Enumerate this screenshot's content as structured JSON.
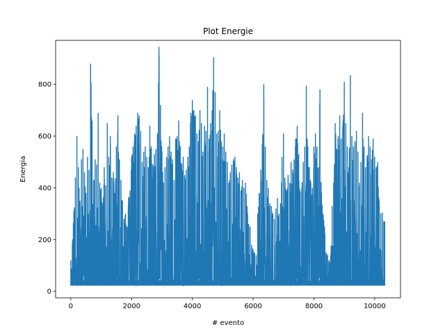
{
  "chart_data": {
    "type": "line",
    "title": "Plot Energie",
    "xlabel": "# evento",
    "ylabel": "Energia",
    "xlim": [
      -500,
      10850
    ],
    "ylim": [
      -25,
      970
    ],
    "xticks": [
      0,
      2000,
      4000,
      6000,
      8000,
      10000
    ],
    "yticks": [
      0,
      200,
      400,
      600,
      800
    ],
    "grid": false,
    "series": [
      {
        "color": "#1f77b4",
        "x_range": [
          0,
          10330
        ],
        "baseline": 22,
        "envelope": [
          [
            0,
            120
          ],
          [
            50,
            185
          ],
          [
            100,
            310
          ],
          [
            150,
            440
          ],
          [
            200,
            600
          ],
          [
            250,
            480
          ],
          [
            300,
            350
          ],
          [
            350,
            510
          ],
          [
            400,
            550
          ],
          [
            450,
            460
          ],
          [
            500,
            380
          ],
          [
            550,
            520
          ],
          [
            600,
            470
          ],
          [
            650,
            880
          ],
          [
            700,
            660
          ],
          [
            750,
            430
          ],
          [
            800,
            510
          ],
          [
            850,
            490
          ],
          [
            900,
            690
          ],
          [
            950,
            420
          ],
          [
            1000,
            400
          ],
          [
            1050,
            330
          ],
          [
            1100,
            480
          ],
          [
            1150,
            410
          ],
          [
            1200,
            650
          ],
          [
            1250,
            520
          ],
          [
            1300,
            600
          ],
          [
            1350,
            440
          ],
          [
            1400,
            460
          ],
          [
            1450,
            380
          ],
          [
            1500,
            560
          ],
          [
            1550,
            680
          ],
          [
            1600,
            510
          ],
          [
            1650,
            430
          ],
          [
            1700,
            350
          ],
          [
            1750,
            280
          ],
          [
            1800,
            300
          ],
          [
            1850,
            250
          ],
          [
            1900,
            360
          ],
          [
            1950,
            390
          ],
          [
            2000,
            520
          ],
          [
            2050,
            560
          ],
          [
            2100,
            610
          ],
          [
            2150,
            640
          ],
          [
            2200,
            690
          ],
          [
            2250,
            680
          ],
          [
            2300,
            620
          ],
          [
            2350,
            500
          ],
          [
            2400,
            540
          ],
          [
            2450,
            560
          ],
          [
            2500,
            520
          ],
          [
            2550,
            480
          ],
          [
            2600,
            640
          ],
          [
            2650,
            560
          ],
          [
            2700,
            490
          ],
          [
            2750,
            530
          ],
          [
            2800,
            550
          ],
          [
            2850,
            610
          ],
          [
            2900,
            945
          ],
          [
            2950,
            720
          ],
          [
            3000,
            540
          ],
          [
            3050,
            420
          ],
          [
            3100,
            480
          ],
          [
            3150,
            520
          ],
          [
            3200,
            560
          ],
          [
            3250,
            600
          ],
          [
            3300,
            540
          ],
          [
            3350,
            510
          ],
          [
            3400,
            430
          ],
          [
            3450,
            590
          ],
          [
            3500,
            600
          ],
          [
            3550,
            660
          ],
          [
            3600,
            560
          ],
          [
            3650,
            490
          ],
          [
            3700,
            520
          ],
          [
            3750,
            450
          ],
          [
            3800,
            470
          ],
          [
            3850,
            520
          ],
          [
            3900,
            560
          ],
          [
            3950,
            690
          ],
          [
            4000,
            740
          ],
          [
            4050,
            700
          ],
          [
            4100,
            680
          ],
          [
            4150,
            610
          ],
          [
            4200,
            580
          ],
          [
            4250,
            700
          ],
          [
            4300,
            650
          ],
          [
            4350,
            540
          ],
          [
            4400,
            640
          ],
          [
            4450,
            620
          ],
          [
            4500,
            790
          ],
          [
            4550,
            590
          ],
          [
            4600,
            650
          ],
          [
            4650,
            700
          ],
          [
            4700,
            905
          ],
          [
            4750,
            770
          ],
          [
            4800,
            610
          ],
          [
            4850,
            620
          ],
          [
            4900,
            700
          ],
          [
            4950,
            580
          ],
          [
            5000,
            560
          ],
          [
            5050,
            610
          ],
          [
            5100,
            540
          ],
          [
            5150,
            500
          ],
          [
            5200,
            420
          ],
          [
            5250,
            460
          ],
          [
            5300,
            490
          ],
          [
            5350,
            510
          ],
          [
            5400,
            520
          ],
          [
            5450,
            480
          ],
          [
            5500,
            440
          ],
          [
            5550,
            460
          ],
          [
            5600,
            390
          ],
          [
            5650,
            430
          ],
          [
            5700,
            400
          ],
          [
            5750,
            420
          ],
          [
            5800,
            330
          ],
          [
            5850,
            260
          ],
          [
            5900,
            250
          ],
          [
            5950,
            180
          ],
          [
            6000,
            160
          ],
          [
            6050,
            150
          ],
          [
            6100,
            140
          ],
          [
            6150,
            300
          ],
          [
            6200,
            380
          ],
          [
            6250,
            470
          ],
          [
            6300,
            570
          ],
          [
            6350,
            800
          ],
          [
            6400,
            560
          ],
          [
            6450,
            430
          ],
          [
            6500,
            400
          ],
          [
            6550,
            340
          ],
          [
            6600,
            330
          ],
          [
            6650,
            300
          ],
          [
            6700,
            280
          ],
          [
            6750,
            320
          ],
          [
            6800,
            360
          ],
          [
            6850,
            300
          ],
          [
            6900,
            340
          ],
          [
            6950,
            520
          ],
          [
            7000,
            610
          ],
          [
            7050,
            420
          ],
          [
            7100,
            390
          ],
          [
            7150,
            450
          ],
          [
            7200,
            420
          ],
          [
            7250,
            500
          ],
          [
            7300,
            470
          ],
          [
            7350,
            510
          ],
          [
            7400,
            590
          ],
          [
            7450,
            640
          ],
          [
            7500,
            530
          ],
          [
            7550,
            380
          ],
          [
            7600,
            400
          ],
          [
            7650,
            500
          ],
          [
            7700,
            560
          ],
          [
            7750,
            795
          ],
          [
            7800,
            560
          ],
          [
            7850,
            480
          ],
          [
            7900,
            420
          ],
          [
            7950,
            400
          ],
          [
            8000,
            560
          ],
          [
            8050,
            610
          ],
          [
            8100,
            560
          ],
          [
            8150,
            480
          ],
          [
            8200,
            780
          ],
          [
            8250,
            380
          ],
          [
            8300,
            300
          ],
          [
            8350,
            250
          ],
          [
            8400,
            150
          ],
          [
            8450,
            140
          ],
          [
            8500,
            120
          ],
          [
            8550,
            140
          ],
          [
            8600,
            330
          ],
          [
            8650,
            420
          ],
          [
            8700,
            650
          ],
          [
            8750,
            550
          ],
          [
            8800,
            600
          ],
          [
            8850,
            680
          ],
          [
            8900,
            590
          ],
          [
            8950,
            640
          ],
          [
            9000,
            810
          ],
          [
            9050,
            650
          ],
          [
            9100,
            560
          ],
          [
            9150,
            480
          ],
          [
            9200,
            835
          ],
          [
            9250,
            600
          ],
          [
            9300,
            560
          ],
          [
            9350,
            580
          ],
          [
            9400,
            620
          ],
          [
            9450,
            540
          ],
          [
            9500,
            420
          ],
          [
            9550,
            500
          ],
          [
            9600,
            690
          ],
          [
            9650,
            560
          ],
          [
            9700,
            480
          ],
          [
            9750,
            520
          ],
          [
            9800,
            600
          ],
          [
            9850,
            560
          ],
          [
            9900,
            510
          ],
          [
            9950,
            590
          ],
          [
            10000,
            520
          ],
          [
            10050,
            480
          ],
          [
            10100,
            500
          ],
          [
            10150,
            350
          ],
          [
            10200,
            300
          ],
          [
            10250,
            305
          ],
          [
            10300,
            270
          ],
          [
            10330,
            270
          ]
        ]
      }
    ]
  }
}
